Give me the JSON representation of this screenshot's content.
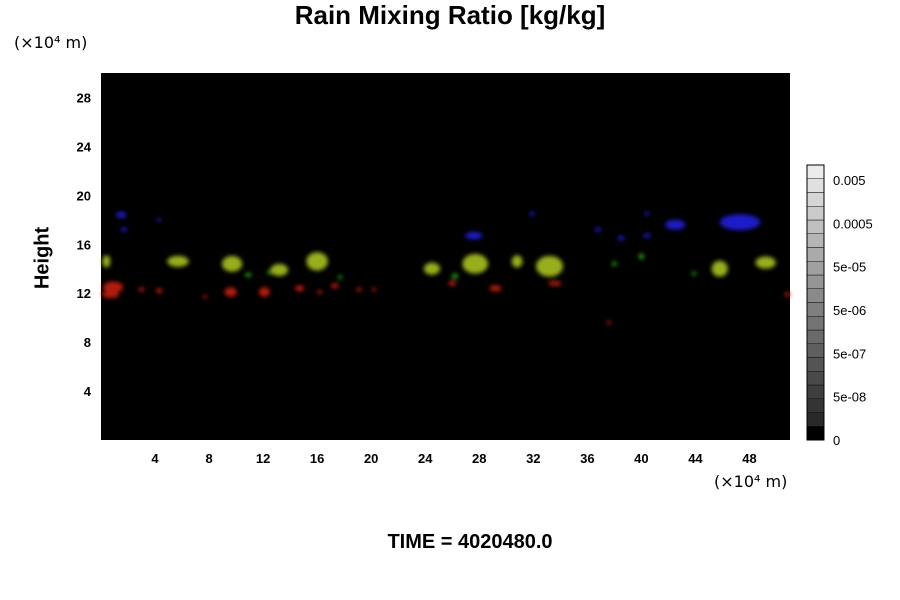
{
  "chart_data": {
    "type": "heatmap",
    "title": "Rain Mixing Ratio [kg/kg]",
    "xlabel": "",
    "ylabel": "Height",
    "x_unit": "(×10⁴ m)",
    "y_unit": "(×10⁴ m)",
    "footer": "TIME = 4020480.0",
    "xlim": [
      0,
      51
    ],
    "ylim": [
      0,
      30
    ],
    "x_ticks": [
      4,
      8,
      12,
      16,
      20,
      24,
      28,
      32,
      36,
      40,
      44,
      48
    ],
    "y_ticks": [
      4,
      8,
      12,
      16,
      20,
      24,
      28
    ],
    "colorbar": {
      "labels": [
        "0.005",
        "0.0005",
        "5e-05",
        "5e-06",
        "5e-07",
        "5e-08",
        "0"
      ]
    },
    "background_color": "#000000",
    "colors": {
      "red": "#b31a10",
      "yellow_green": "#9aae1c",
      "green": "#2ea012",
      "blue": "#1a1ac8"
    },
    "features": [
      {
        "color": "red",
        "x": 0.9,
        "y": 12.5,
        "w": 1.5,
        "h": 0.9
      },
      {
        "color": "red",
        "x": 0.7,
        "y": 11.9,
        "w": 1.3,
        "h": 0.6
      },
      {
        "color": "red",
        "x": 3.0,
        "y": 12.3,
        "w": 0.4,
        "h": 0.4
      },
      {
        "color": "red",
        "x": 4.3,
        "y": 12.2,
        "w": 0.5,
        "h": 0.4
      },
      {
        "color": "red",
        "x": 7.7,
        "y": 11.7,
        "w": 0.3,
        "h": 0.3
      },
      {
        "color": "red",
        "x": 9.6,
        "y": 12.1,
        "w": 0.9,
        "h": 0.8
      },
      {
        "color": "red",
        "x": 12.1,
        "y": 12.1,
        "w": 0.8,
        "h": 0.8
      },
      {
        "color": "red",
        "x": 14.7,
        "y": 12.4,
        "w": 0.7,
        "h": 0.5
      },
      {
        "color": "red",
        "x": 16.2,
        "y": 12.1,
        "w": 0.4,
        "h": 0.3
      },
      {
        "color": "red",
        "x": 17.3,
        "y": 12.6,
        "w": 0.6,
        "h": 0.4
      },
      {
        "color": "red",
        "x": 19.1,
        "y": 12.3,
        "w": 0.4,
        "h": 0.3
      },
      {
        "color": "red",
        "x": 20.2,
        "y": 12.3,
        "w": 0.3,
        "h": 0.3
      },
      {
        "color": "red",
        "x": 26.0,
        "y": 12.8,
        "w": 0.6,
        "h": 0.4
      },
      {
        "color": "red",
        "x": 29.2,
        "y": 12.4,
        "w": 0.9,
        "h": 0.5
      },
      {
        "color": "red",
        "x": 33.6,
        "y": 12.8,
        "w": 1.0,
        "h": 0.4
      },
      {
        "color": "red",
        "x": 37.6,
        "y": 9.6,
        "w": 0.2,
        "h": 0.2
      },
      {
        "color": "red",
        "x": 50.8,
        "y": 11.9,
        "w": 0.4,
        "h": 0.4
      },
      {
        "color": "yellow_green",
        "x": 0.4,
        "y": 14.6,
        "w": 0.6,
        "h": 1.0
      },
      {
        "color": "yellow_green",
        "x": 5.7,
        "y": 14.6,
        "w": 1.6,
        "h": 0.9
      },
      {
        "color": "yellow_green",
        "x": 9.7,
        "y": 14.4,
        "w": 1.5,
        "h": 1.3
      },
      {
        "color": "yellow_green",
        "x": 13.2,
        "y": 13.9,
        "w": 1.3,
        "h": 1.0
      },
      {
        "color": "yellow_green",
        "x": 16.0,
        "y": 14.6,
        "w": 1.6,
        "h": 1.5
      },
      {
        "color": "yellow_green",
        "x": 24.5,
        "y": 14.0,
        "w": 1.2,
        "h": 1.0
      },
      {
        "color": "yellow_green",
        "x": 27.7,
        "y": 14.4,
        "w": 1.9,
        "h": 1.6
      },
      {
        "color": "yellow_green",
        "x": 30.8,
        "y": 14.6,
        "w": 0.8,
        "h": 1.0
      },
      {
        "color": "yellow_green",
        "x": 33.2,
        "y": 14.2,
        "w": 2.0,
        "h": 1.7
      },
      {
        "color": "yellow_green",
        "x": 45.8,
        "y": 14.0,
        "w": 1.2,
        "h": 1.3
      },
      {
        "color": "yellow_green",
        "x": 49.2,
        "y": 14.5,
        "w": 1.5,
        "h": 1.0
      },
      {
        "color": "green",
        "x": 10.9,
        "y": 13.5,
        "w": 0.5,
        "h": 0.3
      },
      {
        "color": "green",
        "x": 12.5,
        "y": 13.7,
        "w": 0.4,
        "h": 0.3
      },
      {
        "color": "green",
        "x": 17.7,
        "y": 13.3,
        "w": 0.3,
        "h": 0.3
      },
      {
        "color": "green",
        "x": 26.2,
        "y": 13.4,
        "w": 0.5,
        "h": 0.4
      },
      {
        "color": "green",
        "x": 38.0,
        "y": 14.4,
        "w": 0.4,
        "h": 0.3
      },
      {
        "color": "green",
        "x": 40.0,
        "y": 15.0,
        "w": 0.4,
        "h": 0.5
      },
      {
        "color": "green",
        "x": 43.9,
        "y": 13.6,
        "w": 0.3,
        "h": 0.3
      },
      {
        "color": "blue",
        "x": 1.5,
        "y": 18.4,
        "w": 0.8,
        "h": 0.5
      },
      {
        "color": "blue",
        "x": 1.7,
        "y": 17.2,
        "w": 0.5,
        "h": 0.3
      },
      {
        "color": "blue",
        "x": 4.3,
        "y": 18.0,
        "w": 0.3,
        "h": 0.3
      },
      {
        "color": "blue",
        "x": 27.6,
        "y": 16.7,
        "w": 1.3,
        "h": 0.6
      },
      {
        "color": "blue",
        "x": 31.9,
        "y": 18.5,
        "w": 0.4,
        "h": 0.3
      },
      {
        "color": "blue",
        "x": 36.8,
        "y": 17.2,
        "w": 0.4,
        "h": 0.4
      },
      {
        "color": "blue",
        "x": 38.5,
        "y": 16.5,
        "w": 0.5,
        "h": 0.4
      },
      {
        "color": "blue",
        "x": 40.4,
        "y": 16.7,
        "w": 0.5,
        "h": 0.4
      },
      {
        "color": "blue",
        "x": 42.5,
        "y": 17.6,
        "w": 1.5,
        "h": 0.8
      },
      {
        "color": "blue",
        "x": 47.3,
        "y": 17.8,
        "w": 3.0,
        "h": 1.3
      },
      {
        "color": "blue",
        "x": 40.4,
        "y": 18.5,
        "w": 0.3,
        "h": 0.4
      }
    ]
  }
}
